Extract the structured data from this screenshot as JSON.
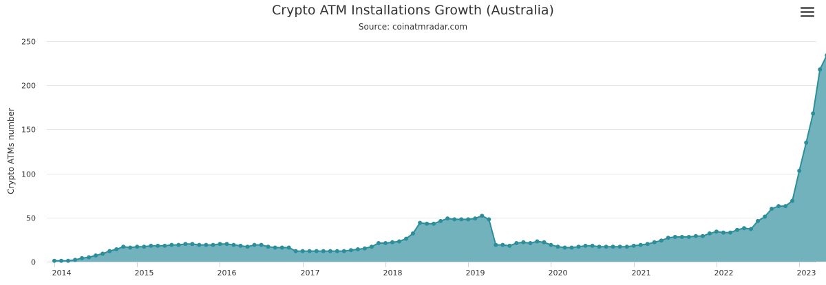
{
  "chart_data": {
    "type": "area",
    "title": "Crypto ATM Installations Growth (Australia)",
    "subtitle": "Source: coinatmradar.com",
    "ylabel": "Crypto ATMs number",
    "xlabel": "",
    "ylim": [
      0,
      250
    ],
    "yticks": [
      0,
      50,
      100,
      150,
      200,
      250
    ],
    "xticks": [
      "2014",
      "2015",
      "2016",
      "2017",
      "2018",
      "2019",
      "2020",
      "2021",
      "2022",
      "2023"
    ],
    "x_start": "2014-01",
    "x_interval": "month",
    "grid": true,
    "legend": "none",
    "color": "#2b8e9a",
    "fill_color": "#6aaeb8",
    "values": [
      1,
      1,
      1,
      2,
      4,
      5,
      7,
      9,
      12,
      14,
      17,
      16,
      17,
      17,
      18,
      18,
      18,
      19,
      19,
      20,
      20,
      19,
      19,
      19,
      20,
      20,
      19,
      18,
      17,
      19,
      19,
      17,
      16,
      16,
      16,
      12,
      12,
      12,
      12,
      12,
      12,
      12,
      12,
      13,
      14,
      15,
      17,
      21,
      21,
      22,
      23,
      26,
      32,
      44,
      43,
      43,
      46,
      49,
      48,
      48,
      48,
      49,
      52,
      48,
      19,
      19,
      18,
      21,
      22,
      21,
      23,
      22,
      19,
      17,
      16,
      16,
      17,
      18,
      18,
      17,
      17,
      17,
      17,
      17,
      18,
      19,
      20,
      22,
      24,
      27,
      28,
      28,
      28,
      29,
      29,
      32,
      34,
      33,
      33,
      36,
      38,
      37,
      46,
      51,
      60,
      63,
      63,
      69,
      103,
      135,
      168,
      218,
      234
    ]
  },
  "menu": {
    "icon": "hamburger-menu-icon"
  }
}
